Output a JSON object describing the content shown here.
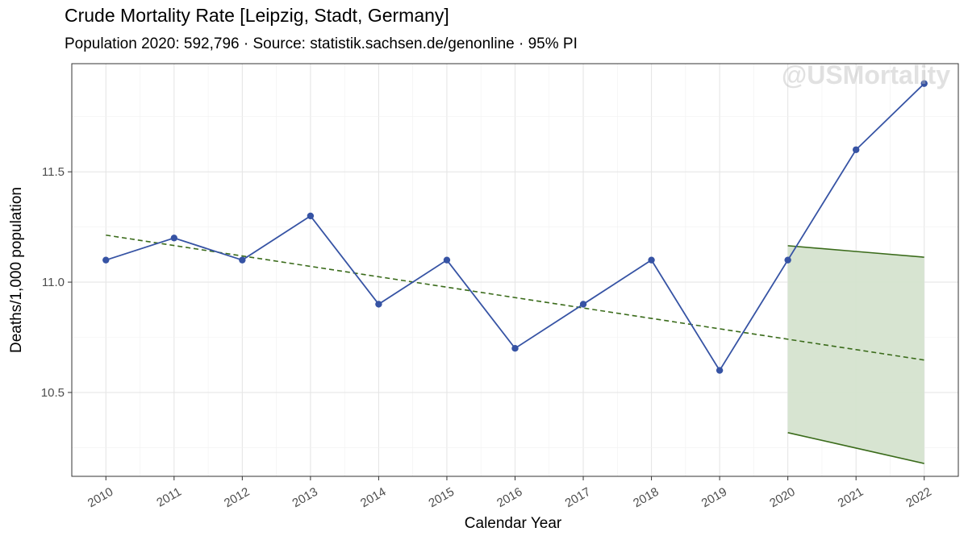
{
  "header": {
    "title": "Crude Mortality Rate [Leipzig, Stadt, Germany]",
    "subtitle": "Population 2020: 592,796 · Source: statistik.sachsen.de/genonline · 95% PI"
  },
  "watermark": "@USMortality",
  "chart_data": {
    "type": "line",
    "xlabel": "Calendar Year",
    "ylabel": "Deaths/1,000 population",
    "x": [
      2010,
      2011,
      2012,
      2013,
      2014,
      2015,
      2016,
      2017,
      2018,
      2019,
      2020,
      2021,
      2022
    ],
    "y_ticks": [
      "10.5",
      "11.0",
      "11.5"
    ],
    "ylim": [
      10.12,
      11.99
    ],
    "grid": true,
    "series": [
      {
        "values": [
          11.1,
          11.2,
          11.1,
          11.3,
          10.9,
          11.1,
          10.7,
          10.9,
          11.1,
          10.6,
          11.1,
          11.6,
          11.9
        ],
        "color": "#3653a4",
        "style": "line+points"
      }
    ],
    "trend": {
      "x": [
        2010,
        2022
      ],
      "values": [
        11.213,
        10.647
      ],
      "color": "#3a6b1a",
      "style": "dashed"
    },
    "prediction_interval": {
      "x": [
        2020,
        2021,
        2022
      ],
      "upper": [
        11.165,
        11.139,
        11.113
      ],
      "lower": [
        10.318,
        10.248,
        10.178
      ],
      "fill": "#d5e3cf",
      "line_color": "#3a6b1a"
    }
  }
}
